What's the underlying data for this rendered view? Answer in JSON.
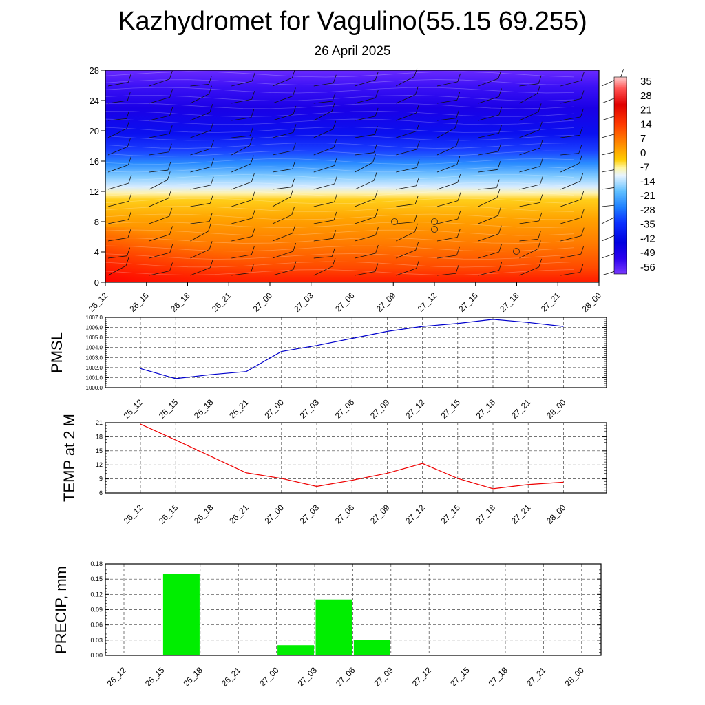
{
  "title": "Kazhydromet for Vagulino(55.15 69.255)",
  "subtitle": "26 April 2025",
  "colors": {
    "pmsl_line": "#0000cc",
    "temp_line": "#ee0000",
    "precip_bar": "#00ee00",
    "grid": "#444444"
  },
  "chart_data": [
    {
      "type": "heatmap",
      "title": "",
      "xlabel": "",
      "ylabel": "",
      "x_ticks": [
        "26_12",
        "26_15",
        "26_18",
        "26_21",
        "27_00",
        "27_03",
        "27_06",
        "27_09",
        "27_12",
        "27_15",
        "27_18",
        "27_21",
        "28_00"
      ],
      "y_ticks": [
        0,
        4,
        8,
        12,
        16,
        20,
        24,
        28
      ],
      "ylim": [
        0,
        28
      ],
      "colorbar_ticks": [
        "35",
        "28",
        "21",
        "14",
        "7",
        "0",
        "-7",
        "-14",
        "-21",
        "-28",
        "-35",
        "-42",
        "-49",
        "-56"
      ],
      "colorbar_range": [
        -60,
        38
      ],
      "overlay": "wind barbs"
    },
    {
      "type": "line",
      "ylabel": "PMSL",
      "x": [
        "26_12",
        "26_15",
        "26_18",
        "26_21",
        "27_00",
        "27_03",
        "27_06",
        "27_09",
        "27_12",
        "27_15",
        "27_18",
        "27_21",
        "28_00"
      ],
      "series": [
        {
          "values": [
            1001.9,
            1000.9,
            1001.3,
            1001.6,
            1003.6,
            1004.2,
            1004.9,
            1005.6,
            1006.1,
            1006.4,
            1006.8,
            1006.5,
            1006.1
          ]
        }
      ],
      "y_ticks": [
        "1000.0",
        "1001.0",
        "1002.0",
        "1003.0",
        "1004.0",
        "1005.0",
        "1006.0",
        "1007.0"
      ],
      "ylim": [
        1000,
        1007
      ],
      "grid": true
    },
    {
      "type": "line",
      "ylabel": "TEMP at 2 M",
      "x": [
        "26_12",
        "26_15",
        "26_18",
        "26_21",
        "27_00",
        "27_03",
        "27_06",
        "27_09",
        "27_12",
        "27_15",
        "27_18",
        "27_21",
        "28_00"
      ],
      "series": [
        {
          "values": [
            20.7,
            17.3,
            13.8,
            10.3,
            9.1,
            7.4,
            8.7,
            10.2,
            12.3,
            9.1,
            6.9,
            7.8,
            8.3
          ]
        }
      ],
      "y_ticks": [
        "6",
        "9",
        "12",
        "15",
        "18",
        "21"
      ],
      "ylim": [
        6,
        21
      ],
      "grid": true
    },
    {
      "type": "bar",
      "ylabel": "PRECIP, mm",
      "categories": [
        "26_12",
        "26_15",
        "26_18",
        "26_21",
        "27_00",
        "27_03",
        "27_06",
        "27_09",
        "27_12",
        "27_15",
        "27_18",
        "27_21",
        "28_00"
      ],
      "values": [
        0,
        0.16,
        0,
        0,
        0.02,
        0.11,
        0.03,
        0,
        0,
        0,
        0,
        0,
        0
      ],
      "y_ticks": [
        "0.00",
        "0.03",
        "0.06",
        "0.09",
        "0.12",
        "0.15",
        "0.18"
      ],
      "ylim": [
        0,
        0.18
      ],
      "grid": true
    }
  ]
}
